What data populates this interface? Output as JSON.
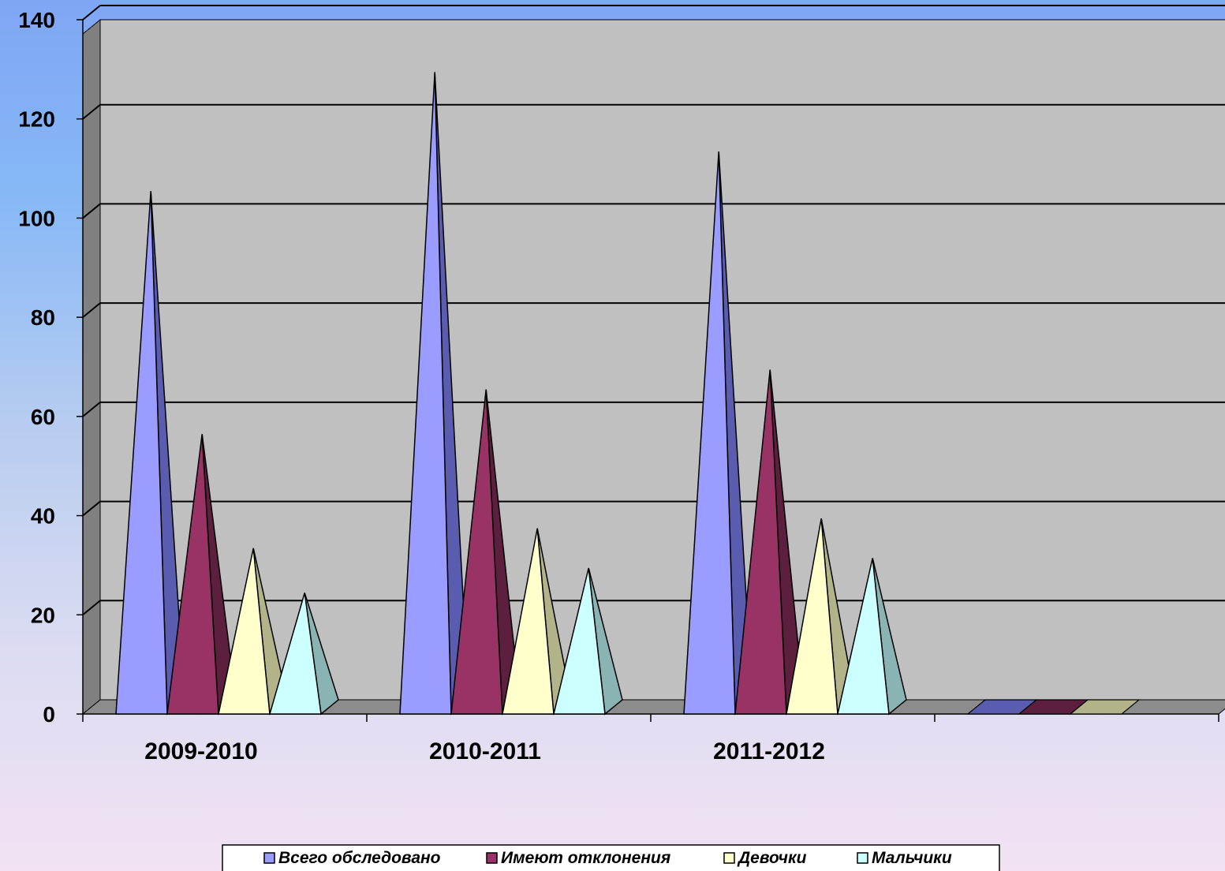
{
  "chart_data": {
    "type": "bar",
    "bar_shape": "3d-pyramid",
    "categories": [
      "2009-2010",
      "2010-2011",
      "2011-2012",
      ""
    ],
    "series": [
      {
        "name": "Всего обследовано",
        "values": [
          104,
          128,
          112,
          0
        ],
        "color": "#9a9cff",
        "shade": "#5a5cb0"
      },
      {
        "name": "Имеют  отклонения",
        "values": [
          55,
          64,
          68,
          0
        ],
        "color": "#993366",
        "shade": "#5c1f3d"
      },
      {
        "name": "Девочки",
        "values": [
          32,
          36,
          38,
          0
        ],
        "color": "#ffffcc",
        "shade": "#b3b38a"
      },
      {
        "name": "Мальчики",
        "values": [
          23,
          28,
          30,
          null
        ],
        "color": "#ccffff",
        "shade": "#8ab3b3"
      }
    ],
    "ylim": [
      0,
      140
    ],
    "yticks": [
      "0",
      "20",
      "40",
      "60",
      "80",
      "100",
      "120",
      "140"
    ],
    "grid": true,
    "legend_position": "bottom",
    "plot_background": "#c0c0c0"
  }
}
